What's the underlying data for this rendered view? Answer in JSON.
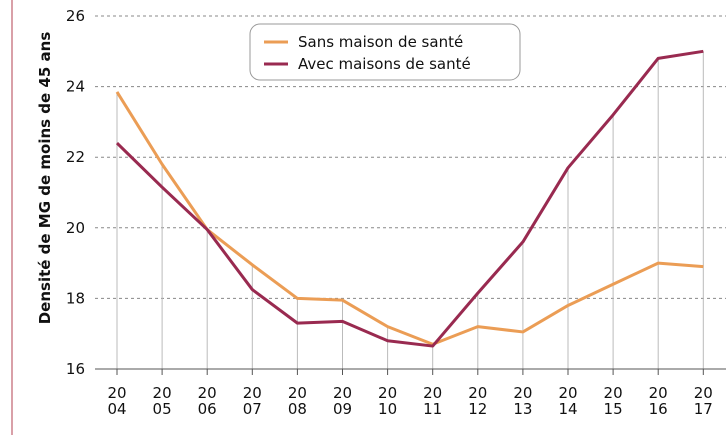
{
  "chart_data": {
    "type": "line",
    "y_label": "Densité de MG de moins de 45 ans",
    "categories": [
      "20\n04",
      "20\n05",
      "20\n06",
      "20\n07",
      "20\n08",
      "20\n09",
      "20\n10",
      "20\n11",
      "20\n12",
      "20\n13",
      "20\n14",
      "20\n15",
      "20\n16",
      "20\n17"
    ],
    "series": [
      {
        "name": "Sans maison de santé",
        "color": "#eb9d55",
        "values": [
          23.85,
          21.8,
          19.95,
          18.95,
          18.0,
          17.95,
          17.2,
          16.7,
          17.2,
          17.05,
          17.8,
          18.4,
          19.0,
          18.9
        ]
      },
      {
        "name": "Avec maisons de santé",
        "color": "#992a50",
        "values": [
          22.4,
          21.15,
          19.95,
          18.25,
          17.3,
          17.35,
          16.8,
          16.65,
          18.15,
          19.6,
          21.7,
          23.2,
          24.8,
          25.0
        ]
      }
    ],
    "ylim": [
      16,
      26
    ],
    "yticks": [
      16,
      18,
      20,
      22,
      24,
      26
    ],
    "grid": true,
    "legend": "top"
  }
}
